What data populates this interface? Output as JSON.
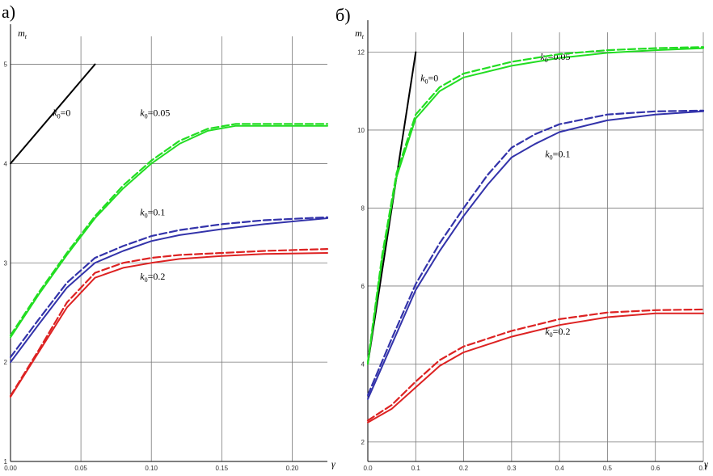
{
  "chart_data": [
    {
      "type": "line",
      "panel_label": "а)",
      "ylabel_main": "m",
      "ylabel_sub": "t",
      "xlabel": "γ",
      "xlim": [
        0,
        0.225
      ],
      "ylim": [
        1,
        5.2
      ],
      "xticks": [
        0.0,
        0.05,
        0.1,
        0.15,
        0.2
      ],
      "xtick_labels": [
        "0.00",
        "0.05",
        "0.10",
        "0.15",
        "0.20"
      ],
      "yticks": [
        1,
        2,
        3,
        4,
        5
      ],
      "ytick_labels": [
        "1",
        "2",
        "3",
        "4",
        "5"
      ],
      "grid": true,
      "series": [
        {
          "label_var": "k",
          "label_sub": "0",
          "label_val": "=0",
          "label_at": [
            0.03,
            4.48
          ],
          "color": "#000000",
          "style": "solid",
          "x": [
            0,
            0.06
          ],
          "y": [
            4.0,
            5.0
          ]
        },
        {
          "label_var": "k",
          "label_sub": "0",
          "label_val": "=0.05",
          "label_at": [
            0.092,
            4.48
          ],
          "color": "#22dd22",
          "style": "solid",
          "x": [
            0,
            0.02,
            0.04,
            0.06,
            0.08,
            0.1,
            0.12,
            0.14,
            0.16,
            0.2,
            0.225
          ],
          "y": [
            2.25,
            2.68,
            3.08,
            3.45,
            3.75,
            4.0,
            4.2,
            4.33,
            4.38,
            4.38,
            4.38
          ]
        },
        {
          "color": "#22dd22",
          "style": "dashed",
          "x": [
            0,
            0.02,
            0.04,
            0.06,
            0.08,
            0.1,
            0.12,
            0.14,
            0.16,
            0.2,
            0.225
          ],
          "y": [
            2.27,
            2.7,
            3.1,
            3.47,
            3.78,
            4.03,
            4.23,
            4.35,
            4.4,
            4.4,
            4.4
          ]
        },
        {
          "label_var": "k",
          "label_sub": "0",
          "label_val": "=0.1",
          "label_at": [
            0.092,
            3.48
          ],
          "color": "#3333aa",
          "style": "solid",
          "x": [
            0,
            0.02,
            0.04,
            0.06,
            0.08,
            0.1,
            0.12,
            0.15,
            0.18,
            0.225
          ],
          "y": [
            2.0,
            2.38,
            2.75,
            3.0,
            3.12,
            3.22,
            3.28,
            3.34,
            3.39,
            3.45
          ]
        },
        {
          "color": "#3333aa",
          "style": "dashed",
          "x": [
            0,
            0.02,
            0.04,
            0.06,
            0.08,
            0.1,
            0.12,
            0.15,
            0.18,
            0.225
          ],
          "y": [
            2.05,
            2.43,
            2.8,
            3.05,
            3.17,
            3.27,
            3.33,
            3.39,
            3.43,
            3.46
          ]
        },
        {
          "label_var": "k",
          "label_sub": "0",
          "label_val": "=0.2",
          "label_at": [
            0.092,
            2.83
          ],
          "color": "#dd2222",
          "style": "solid",
          "x": [
            0,
            0.02,
            0.04,
            0.06,
            0.08,
            0.1,
            0.12,
            0.15,
            0.18,
            0.225
          ],
          "y": [
            1.65,
            2.1,
            2.55,
            2.85,
            2.95,
            3.0,
            3.04,
            3.07,
            3.09,
            3.1
          ]
        },
        {
          "color": "#dd2222",
          "style": "dashed",
          "x": [
            0,
            0.02,
            0.04,
            0.06,
            0.08,
            0.1,
            0.12,
            0.15,
            0.18,
            0.225
          ],
          "y": [
            1.66,
            2.12,
            2.6,
            2.9,
            3.0,
            3.05,
            3.08,
            3.1,
            3.12,
            3.14
          ]
        }
      ]
    },
    {
      "type": "line",
      "panel_label": "б)",
      "ylabel_main": "m",
      "ylabel_sub": "t",
      "xlabel": "γ",
      "xlim": [
        0,
        0.7
      ],
      "ylim": [
        1.5,
        12.3
      ],
      "xticks": [
        0.0,
        0.1,
        0.2,
        0.3,
        0.4,
        0.5,
        0.6,
        0.7
      ],
      "xtick_labels": [
        "0.0",
        "0.1",
        "0.2",
        "0.3",
        "0.4",
        "0.5",
        "0.6",
        "0.7"
      ],
      "yticks": [
        2,
        4,
        6,
        8,
        10,
        12
      ],
      "ytick_labels": [
        "2",
        "4",
        "6",
        "8",
        "10",
        "12"
      ],
      "grid": true,
      "series": [
        {
          "label_var": "k",
          "label_sub": "0",
          "label_val": "=0",
          "label_at": [
            0.11,
            11.25
          ],
          "color": "#000000",
          "style": "solid",
          "x": [
            0,
            0.1
          ],
          "y": [
            4.0,
            12.0
          ]
        },
        {
          "label_var": "k",
          "label_sub": "0",
          "label_val": "=0.05",
          "label_at": [
            0.36,
            11.8
          ],
          "color": "#22dd22",
          "style": "solid",
          "x": [
            0,
            0.03,
            0.06,
            0.1,
            0.15,
            0.2,
            0.3,
            0.4,
            0.5,
            0.6,
            0.7
          ],
          "y": [
            4.0,
            6.7,
            8.8,
            10.3,
            11.0,
            11.35,
            11.65,
            11.85,
            11.98,
            12.05,
            12.1
          ]
        },
        {
          "color": "#22dd22",
          "style": "dashed",
          "x": [
            0,
            0.03,
            0.06,
            0.1,
            0.15,
            0.2,
            0.3,
            0.4,
            0.5,
            0.6,
            0.7
          ],
          "y": [
            4.05,
            6.8,
            8.9,
            10.4,
            11.1,
            11.45,
            11.75,
            11.95,
            12.05,
            12.1,
            12.13
          ]
        },
        {
          "label_var": "k",
          "label_sub": "0",
          "label_val": "=0.1",
          "label_at": [
            0.37,
            9.3
          ],
          "color": "#3333aa",
          "style": "solid",
          "x": [
            0,
            0.05,
            0.1,
            0.15,
            0.2,
            0.25,
            0.3,
            0.35,
            0.4,
            0.5,
            0.6,
            0.7
          ],
          "y": [
            3.1,
            4.5,
            5.9,
            6.9,
            7.8,
            8.6,
            9.3,
            9.65,
            9.95,
            10.25,
            10.4,
            10.48
          ]
        },
        {
          "color": "#3333aa",
          "style": "dashed",
          "x": [
            0,
            0.05,
            0.1,
            0.15,
            0.2,
            0.25,
            0.3,
            0.35,
            0.4,
            0.5,
            0.6,
            0.7
          ],
          "y": [
            3.2,
            4.65,
            6.05,
            7.1,
            8.0,
            8.85,
            9.55,
            9.9,
            10.15,
            10.4,
            10.48,
            10.5
          ]
        },
        {
          "label_var": "k",
          "label_sub": "0",
          "label_val": "=0.2",
          "label_at": [
            0.37,
            4.75
          ],
          "color": "#dd2222",
          "style": "solid",
          "x": [
            0,
            0.05,
            0.1,
            0.15,
            0.2,
            0.3,
            0.4,
            0.5,
            0.6,
            0.7
          ],
          "y": [
            2.5,
            2.85,
            3.4,
            3.95,
            4.3,
            4.7,
            5.0,
            5.2,
            5.3,
            5.3
          ]
        },
        {
          "color": "#dd2222",
          "style": "dashed",
          "x": [
            0,
            0.05,
            0.1,
            0.15,
            0.2,
            0.3,
            0.4,
            0.5,
            0.6,
            0.7
          ],
          "y": [
            2.55,
            2.95,
            3.55,
            4.1,
            4.45,
            4.85,
            5.15,
            5.32,
            5.38,
            5.4
          ]
        }
      ]
    }
  ]
}
